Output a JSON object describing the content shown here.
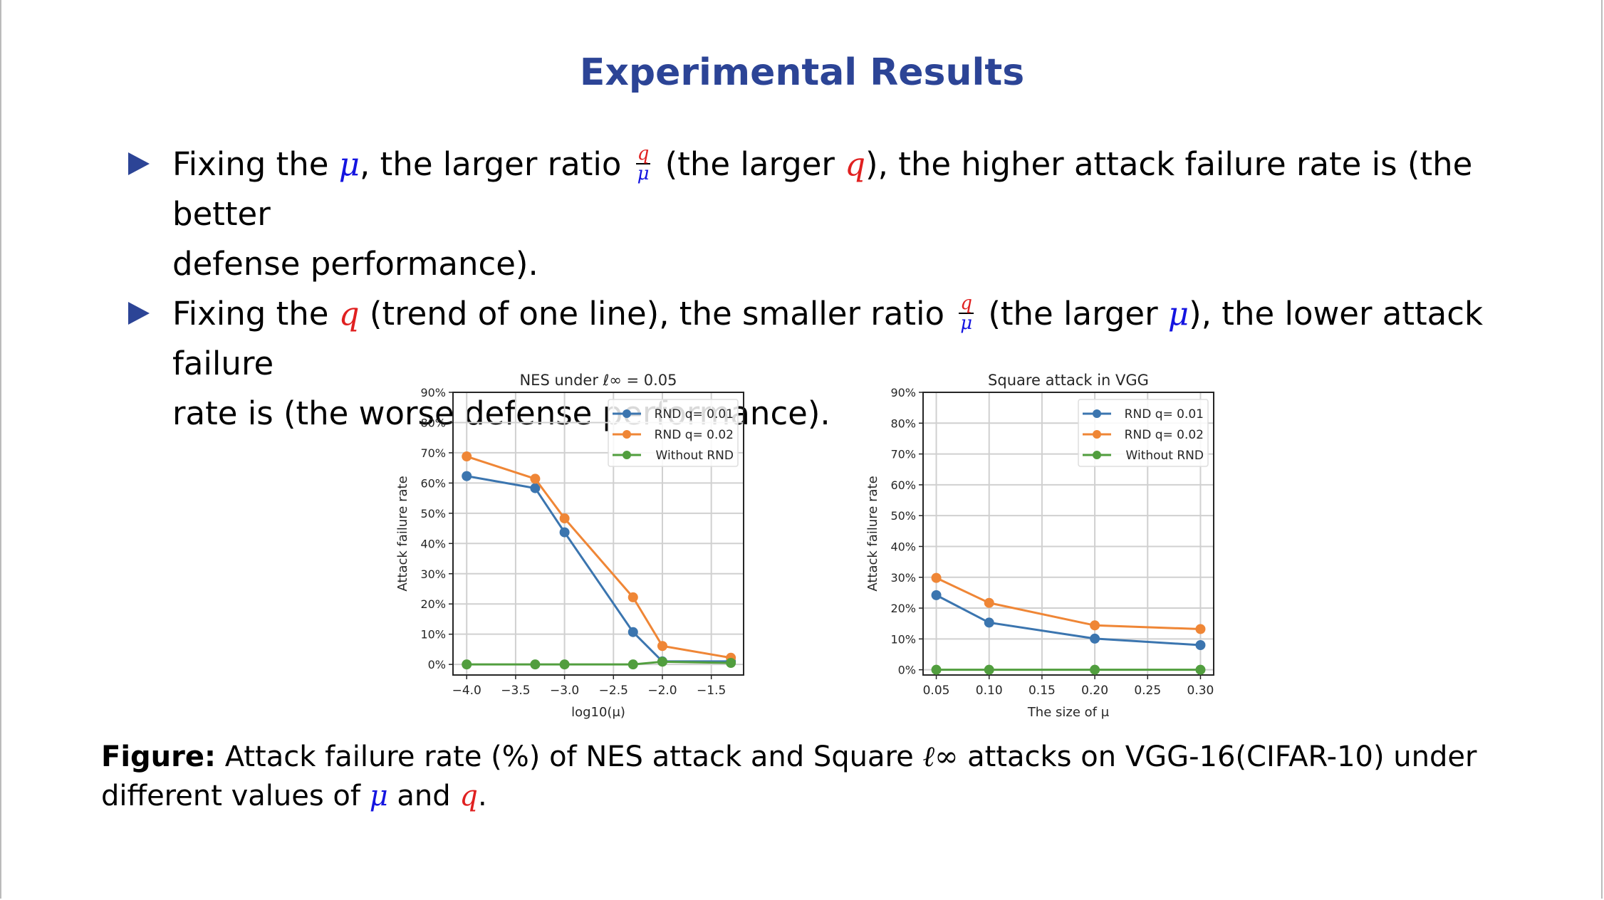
{
  "slide": {
    "title": "Experimental Results",
    "bullets": [
      {
        "parts": [
          "Fixing the ",
          "μ",
          ", the larger ratio ",
          "q",
          "μ",
          " (the larger ",
          "q",
          "), the higher attack failure rate is (the better",
          "defense performance)."
        ]
      },
      {
        "parts": [
          "Fixing the ",
          "q",
          " (trend of one line), the smaller ratio ",
          "q",
          "μ",
          " (the larger ",
          "μ",
          "), the lower attack failure",
          "rate is (the worse defense performance)."
        ]
      }
    ],
    "caption": {
      "label": "Figure:",
      "text_1": " Attack failure rate (%) of NES attack and Square ",
      "linf": "ℓ∞",
      "text_2": " attacks on VGG-16(CIFAR-10) under",
      "text_3": "different values of ",
      "mu": "μ",
      "and": " and ",
      "q": "q",
      "end": "."
    },
    "colors": {
      "title": "#2c4496",
      "mu": "#1515e0",
      "q": "#e02020"
    }
  },
  "chart_data": [
    {
      "type": "line",
      "title": "NES under ℓ∞ = 0.05",
      "xlabel": "log10(μ)",
      "ylabel": "Attack failure rate",
      "x": [
        -4.0,
        -3.3,
        -3.0,
        -2.3,
        -2.0,
        -1.3
      ],
      "xticks": [
        "−4.0",
        "−3.5",
        "−3.0",
        "−2.5",
        "−2.0",
        "−1.5"
      ],
      "xtick_values": [
        -4.0,
        -3.5,
        -3.0,
        -2.5,
        -2.0,
        -1.5
      ],
      "xlim": [
        -4.14,
        -1.17
      ],
      "yticks": [
        "0%",
        "10%",
        "20%",
        "30%",
        "40%",
        "50%",
        "60%",
        "70%",
        "80%",
        "90%"
      ],
      "ylim": [
        -3.5,
        90
      ],
      "grid": true,
      "legend_position": "upper right",
      "series": [
        {
          "name": "RND q= 0.01",
          "color": "#3b75af",
          "values": [
            62.3,
            58.3,
            43.7,
            10.7,
            1.0,
            1.0
          ]
        },
        {
          "name": "RND q= 0.02",
          "color": "#ef8636",
          "values": [
            68.8,
            61.4,
            48.3,
            22.2,
            6.1,
            2.2
          ]
        },
        {
          "name": "Without RND",
          "color": "#519e3e",
          "values": [
            0.0,
            0.0,
            0.0,
            0.0,
            0.9,
            0.5
          ]
        }
      ]
    },
    {
      "type": "line",
      "title": "Square attack in VGG",
      "xlabel": "The size of μ",
      "ylabel": "Attack failure rate",
      "x": [
        0.05,
        0.1,
        0.2,
        0.3
      ],
      "xticks": [
        "0.05",
        "0.10",
        "0.15",
        "0.20",
        "0.25",
        "0.30"
      ],
      "xtick_values": [
        0.05,
        0.1,
        0.15,
        0.2,
        0.25,
        0.3
      ],
      "xlim": [
        0.0375,
        0.3125
      ],
      "yticks": [
        "0%",
        "10%",
        "20%",
        "30%",
        "40%",
        "50%",
        "60%",
        "70%",
        "80%",
        "90%"
      ],
      "ylim": [
        -1.7,
        90
      ],
      "grid": true,
      "legend_position": "upper right",
      "series": [
        {
          "name": "RND q= 0.01",
          "color": "#3b75af",
          "values": [
            24.2,
            15.3,
            10.1,
            8.0
          ]
        },
        {
          "name": "RND q= 0.02",
          "color": "#ef8636",
          "values": [
            29.8,
            21.7,
            14.4,
            13.2
          ]
        },
        {
          "name": "Without RND",
          "color": "#519e3e",
          "values": [
            0.0,
            0.0,
            0.0,
            0.0
          ]
        }
      ]
    }
  ]
}
